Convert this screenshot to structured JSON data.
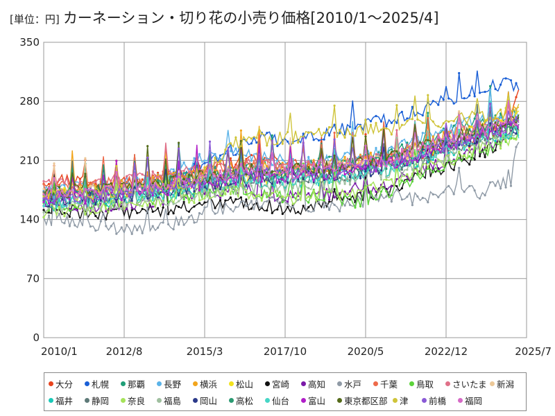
{
  "title": {
    "unit": "[単位：円]",
    "main": "カーネーション・切り花の小売り価格[2010/1～2025/4]"
  },
  "chart_data": {
    "type": "line",
    "title": "カーネーション・切り花の小売り価格[2010/1～2025/4]",
    "unit": "[単位：円]",
    "xlabel": "",
    "ylabel": "",
    "x_range": [
      "2010/1",
      "2025/7"
    ],
    "x_ticks": [
      "2010/1",
      "2012/8",
      "2015/3",
      "2017/10",
      "2020/5",
      "2022/12",
      "2025/7"
    ],
    "ylim": [
      0,
      350
    ],
    "y_ticks": [
      0,
      70,
      140,
      210,
      280,
      350
    ],
    "grid": true,
    "legend_position": "bottom",
    "sample_dates": [
      "2010/1",
      "2011/1",
      "2012/1",
      "2013/1",
      "2014/1",
      "2015/1",
      "2016/1",
      "2017/1",
      "2018/1",
      "2019/1",
      "2020/1",
      "2021/1",
      "2022/1",
      "2023/1",
      "2024/1",
      "2025/1",
      "2025/4"
    ],
    "series": [
      {
        "name": "大分",
        "color": "#e8431d",
        "values": [
          186,
          188,
          182,
          185,
          190,
          198,
          205,
          210,
          205,
          200,
          202,
          210,
          215,
          225,
          235,
          255,
          302
        ]
      },
      {
        "name": "札幌",
        "color": "#1a5fd6",
        "values": [
          165,
          170,
          172,
          176,
          188,
          200,
          222,
          238,
          232,
          242,
          252,
          258,
          268,
          282,
          295,
          302,
          298
        ]
      },
      {
        "name": "那覇",
        "color": "#1f9e77",
        "values": [
          170,
          168,
          175,
          180,
          185,
          192,
          198,
          205,
          200,
          208,
          210,
          214,
          230,
          245,
          255,
          262,
          270
        ]
      },
      {
        "name": "長野",
        "color": "#5bb3e8",
        "values": [
          175,
          178,
          180,
          185,
          195,
          210,
          220,
          215,
          205,
          210,
          215,
          220,
          235,
          245,
          258,
          265,
          260
        ]
      },
      {
        "name": "横浜",
        "color": "#f2a51c",
        "values": [
          172,
          176,
          178,
          182,
          188,
          195,
          200,
          205,
          200,
          205,
          210,
          215,
          225,
          240,
          250,
          262,
          275
        ]
      },
      {
        "name": "松山",
        "color": "#f2e21c",
        "values": [
          168,
          170,
          172,
          175,
          178,
          182,
          186,
          190,
          195,
          198,
          200,
          205,
          218,
          232,
          248,
          262,
          265
        ]
      },
      {
        "name": "宮崎",
        "color": "#111111",
        "values": [
          150,
          148,
          145,
          150,
          152,
          155,
          160,
          158,
          150,
          162,
          168,
          172,
          190,
          205,
          215,
          238,
          255
        ]
      },
      {
        "name": "高知",
        "color": "#7a1aa8",
        "values": [
          160,
          158,
          155,
          160,
          165,
          170,
          175,
          172,
          165,
          170,
          175,
          180,
          195,
          210,
          225,
          240,
          252
        ]
      },
      {
        "name": "水戸",
        "color": "#8f9aa6",
        "values": [
          140,
          138,
          130,
          125,
          132,
          145,
          155,
          160,
          158,
          155,
          160,
          165,
          165,
          175,
          172,
          185,
          235
        ]
      },
      {
        "name": "千葉",
        "color": "#ee6a4a",
        "values": [
          178,
          180,
          182,
          185,
          190,
          195,
          200,
          205,
          200,
          202,
          208,
          212,
          222,
          232,
          242,
          250,
          255
        ]
      },
      {
        "name": "鳥取",
        "color": "#5cd33a",
        "values": [
          155,
          158,
          160,
          162,
          168,
          172,
          175,
          170,
          165,
          170,
          160,
          172,
          190,
          205,
          220,
          235,
          245
        ]
      },
      {
        "name": "さいたま",
        "color": "#e07088",
        "values": [
          180,
          182,
          184,
          188,
          192,
          198,
          202,
          206,
          200,
          203,
          208,
          212,
          225,
          238,
          248,
          255,
          258
        ]
      },
      {
        "name": "新潟",
        "color": "#ecc898",
        "values": [
          170,
          172,
          174,
          178,
          182,
          188,
          194,
          198,
          196,
          200,
          204,
          210,
          220,
          232,
          244,
          252,
          250
        ]
      },
      {
        "name": "福井",
        "color": "#19c9b8",
        "values": [
          158,
          160,
          162,
          166,
          170,
          176,
          182,
          186,
          184,
          188,
          192,
          198,
          210,
          222,
          234,
          244,
          246
        ]
      },
      {
        "name": "静岡",
        "color": "#5e7a78",
        "values": [
          165,
          166,
          168,
          172,
          176,
          182,
          188,
          190,
          186,
          190,
          194,
          200,
          212,
          224,
          236,
          246,
          248
        ]
      },
      {
        "name": "奈良",
        "color": "#a6e35a",
        "values": [
          150,
          152,
          155,
          158,
          162,
          168,
          172,
          170,
          166,
          170,
          174,
          180,
          195,
          210,
          224,
          236,
          240
        ]
      },
      {
        "name": "福島",
        "color": "#9fbf9f",
        "values": [
          155,
          156,
          158,
          160,
          165,
          170,
          176,
          180,
          178,
          182,
          186,
          192,
          205,
          218,
          230,
          240,
          242
        ]
      },
      {
        "name": "岡山",
        "color": "#2b3a8a",
        "values": [
          162,
          164,
          166,
          170,
          174,
          180,
          186,
          190,
          188,
          192,
          196,
          202,
          214,
          226,
          238,
          248,
          250
        ]
      },
      {
        "name": "高松",
        "color": "#2a9a72",
        "values": [
          168,
          170,
          172,
          176,
          180,
          186,
          192,
          196,
          194,
          198,
          202,
          208,
          220,
          232,
          244,
          254,
          256
        ]
      },
      {
        "name": "仙台",
        "color": "#46d6c6",
        "values": [
          160,
          162,
          164,
          168,
          172,
          178,
          184,
          188,
          186,
          190,
          194,
          200,
          212,
          224,
          236,
          244,
          244
        ]
      },
      {
        "name": "富山",
        "color": "#b01ec8",
        "values": [
          164,
          166,
          168,
          172,
          176,
          182,
          188,
          192,
          190,
          194,
          198,
          204,
          216,
          228,
          240,
          250,
          252
        ]
      },
      {
        "name": "東京都区部",
        "color": "#556b1a",
        "values": [
          172,
          174,
          176,
          180,
          184,
          190,
          196,
          200,
          198,
          202,
          206,
          212,
          224,
          236,
          248,
          258,
          260
        ]
      },
      {
        "name": "津",
        "color": "#cfc43a",
        "values": [
          168,
          170,
          172,
          176,
          180,
          186,
          230,
          235,
          238,
          242,
          246,
          248,
          252,
          256,
          262,
          268,
          270
        ]
      },
      {
        "name": "前橋",
        "color": "#8a5ad6",
        "values": [
          166,
          168,
          170,
          174,
          178,
          184,
          190,
          194,
          192,
          196,
          200,
          206,
          218,
          230,
          242,
          252,
          254
        ]
      },
      {
        "name": "福岡",
        "color": "#d66ac6",
        "values": [
          170,
          172,
          174,
          178,
          182,
          188,
          194,
          198,
          196,
          200,
          204,
          210,
          222,
          234,
          246,
          256,
          258
        ]
      }
    ]
  }
}
